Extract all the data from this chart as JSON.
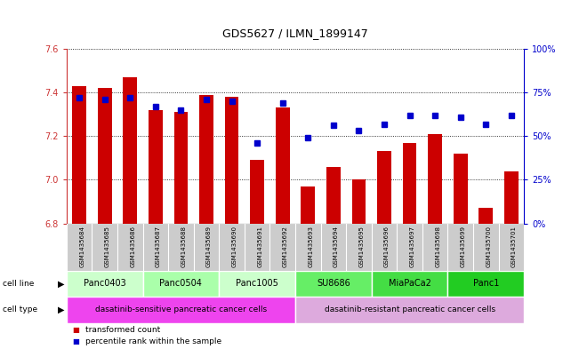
{
  "title": "GDS5627 / ILMN_1899147",
  "samples": [
    "GSM1435684",
    "GSM1435685",
    "GSM1435686",
    "GSM1435687",
    "GSM1435688",
    "GSM1435689",
    "GSM1435690",
    "GSM1435691",
    "GSM1435692",
    "GSM1435693",
    "GSM1435694",
    "GSM1435695",
    "GSM1435696",
    "GSM1435697",
    "GSM1435698",
    "GSM1435699",
    "GSM1435700",
    "GSM1435701"
  ],
  "bar_values": [
    7.43,
    7.42,
    7.47,
    7.32,
    7.31,
    7.39,
    7.38,
    7.09,
    7.33,
    6.97,
    7.06,
    7.0,
    7.13,
    7.17,
    7.21,
    7.12,
    6.87,
    7.04
  ],
  "dot_values": [
    72,
    71,
    72,
    67,
    65,
    71,
    70,
    46,
    69,
    49,
    56,
    53,
    57,
    62,
    62,
    61,
    57,
    62
  ],
  "ylim_left": [
    6.8,
    7.6
  ],
  "ylim_right": [
    0,
    100
  ],
  "yticks_left": [
    6.8,
    7.0,
    7.2,
    7.4,
    7.6
  ],
  "yticks_right": [
    0,
    25,
    50,
    75,
    100
  ],
  "ytick_labels_right": [
    "0%",
    "25%",
    "50%",
    "75%",
    "100%"
  ],
  "bar_color": "#cc0000",
  "dot_color": "#0000cc",
  "bar_bottom": 6.8,
  "cell_line_groups": [
    {
      "label": "Panc0403",
      "start": 0,
      "end": 3
    },
    {
      "label": "Panc0504",
      "start": 3,
      "end": 6
    },
    {
      "label": "Panc1005",
      "start": 6,
      "end": 9
    },
    {
      "label": "SU8686",
      "start": 9,
      "end": 12
    },
    {
      "label": "MiaPaCa2",
      "start": 12,
      "end": 15
    },
    {
      "label": "Panc1",
      "start": 15,
      "end": 18
    }
  ],
  "cell_line_colors": [
    "#ccffcc",
    "#aaffaa",
    "#ccffcc",
    "#66ee66",
    "#44dd44",
    "#22cc22"
  ],
  "cell_type_groups": [
    {
      "label": "dasatinib-sensitive pancreatic cancer cells",
      "start": 0,
      "end": 9
    },
    {
      "label": "dasatinib-resistant pancreatic cancer cells",
      "start": 9,
      "end": 18
    }
  ],
  "cell_type_colors": [
    "#ee44ee",
    "#ddaadd"
  ],
  "xtick_bg_color": "#cccccc",
  "legend_items": [
    {
      "color": "#cc0000",
      "label": "transformed count"
    },
    {
      "color": "#0000cc",
      "label": "percentile rank within the sample"
    }
  ],
  "left_axis_color": "#cc3333",
  "right_axis_color": "#0000cc",
  "grid_color": "black",
  "fig_width": 6.51,
  "fig_height": 3.93,
  "dpi": 100
}
